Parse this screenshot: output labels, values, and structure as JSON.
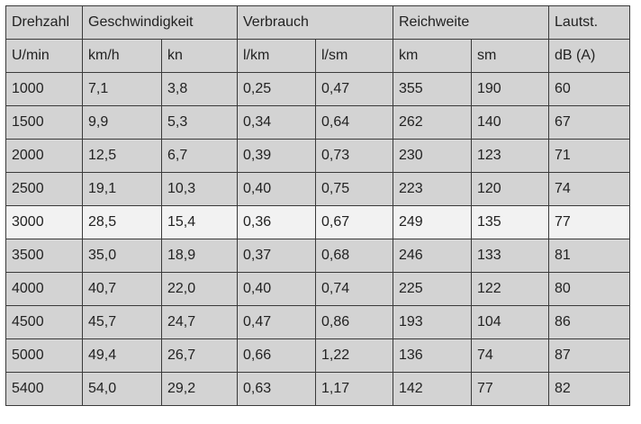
{
  "table": {
    "header": {
      "drehzahl": "Drehzahl",
      "geschwindigkeit": "Geschwindigkeit",
      "verbrauch": "Verbrauch",
      "reichweite": "Reichweite",
      "lautst": "Lautst."
    },
    "units": [
      "U/min",
      "km/h",
      "kn",
      "l/km",
      "l/sm",
      "km",
      "sm",
      "dB (A)"
    ],
    "rows": [
      [
        "1000",
        "7,1",
        "3,8",
        "0,25",
        "0,47",
        "355",
        "190",
        "60"
      ],
      [
        "1500",
        "9,9",
        "5,3",
        "0,34",
        "0,64",
        "262",
        "140",
        "67"
      ],
      [
        "2000",
        "12,5",
        "6,7",
        "0,39",
        "0,73",
        "230",
        "123",
        "71"
      ],
      [
        "2500",
        "19,1",
        "10,3",
        "0,40",
        "0,75",
        "223",
        "120",
        "74"
      ],
      [
        "3000",
        "28,5",
        "15,4",
        "0,36",
        "0,67",
        "249",
        "135",
        "77"
      ],
      [
        "3500",
        "35,0",
        "18,9",
        "0,37",
        "0,68",
        "246",
        "133",
        "81"
      ],
      [
        "4000",
        "40,7",
        "22,0",
        "0,40",
        "0,74",
        "225",
        "122",
        "80"
      ],
      [
        "4500",
        "45,7",
        "24,7",
        "0,47",
        "0,86",
        "193",
        "104",
        "86"
      ],
      [
        "5000",
        "49,4",
        "26,7",
        "0,66",
        "1,22",
        "136",
        "74",
        "87"
      ],
      [
        "5400",
        "54,0",
        "29,2",
        "0,63",
        "1,17",
        "142",
        "77",
        "82"
      ]
    ],
    "highlight_row": "3000",
    "colors": {
      "cell_background": "#d3d3d3",
      "highlight_background": "#f2f2f2",
      "border": "#3a3a3a",
      "text": "#222222"
    }
  }
}
